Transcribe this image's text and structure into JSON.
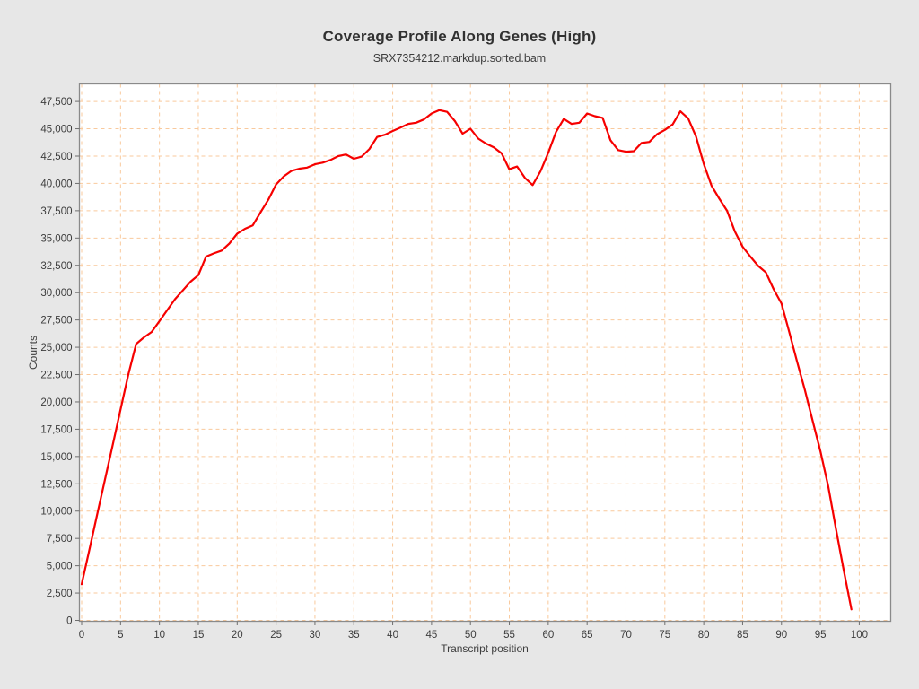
{
  "chart_data": {
    "type": "line",
    "title": "Coverage Profile Along Genes (High)",
    "subtitle": "SRX7354212.markdup.sorted.bam",
    "xlabel": "Transcript position",
    "ylabel": "Counts",
    "legend": "none",
    "grid": true,
    "grid_style": "dashed",
    "xlim": [
      -0.29,
      104.05
    ],
    "ylim": [
      -82,
      49110
    ],
    "x_ticks": [
      0,
      5,
      10,
      15,
      20,
      25,
      30,
      35,
      40,
      45,
      50,
      55,
      60,
      65,
      70,
      75,
      80,
      85,
      90,
      95,
      100
    ],
    "x_tick_labels": [
      "0",
      "5",
      "10",
      "15",
      "20",
      "25",
      "30",
      "35",
      "40",
      "45",
      "50",
      "55",
      "60",
      "65",
      "70",
      "75",
      "80",
      "85",
      "90",
      "95",
      "100"
    ],
    "y_ticks": [
      0,
      2500,
      5000,
      7500,
      10000,
      12500,
      15000,
      17500,
      20000,
      22500,
      25000,
      27500,
      30000,
      32500,
      35000,
      37500,
      40000,
      42500,
      45000,
      47500
    ],
    "y_tick_labels": [
      "0",
      "2,500",
      "5,000",
      "7,500",
      "10,000",
      "12,500",
      "15,000",
      "17,500",
      "20,000",
      "22,500",
      "25,000",
      "27,500",
      "30,000",
      "32,500",
      "35,000",
      "37,500",
      "40,000",
      "42,500",
      "45,000",
      "47,500"
    ],
    "colors": {
      "line": "#f60000",
      "grid": "#f9c99c",
      "plot_bg": "#ffffff",
      "page_bg": "#e7e7e7",
      "axis": "#8a8a8a",
      "tick": "#6e6e6e",
      "text": "#3d3d3d",
      "title": "#313131",
      "subtitle": "#3d3d3d"
    },
    "x": [
      0,
      1,
      2,
      3,
      4,
      5,
      6,
      7,
      8,
      9,
      10,
      11,
      12,
      13,
      14,
      15,
      16,
      17,
      18,
      19,
      20,
      21,
      22,
      23,
      24,
      25,
      26,
      27,
      28,
      29,
      30,
      31,
      32,
      33,
      34,
      35,
      36,
      37,
      38,
      39,
      40,
      41,
      42,
      43,
      44,
      45,
      46,
      47,
      48,
      49,
      50,
      51,
      52,
      53,
      54,
      55,
      56,
      57,
      58,
      59,
      60,
      61,
      62,
      63,
      64,
      65,
      66,
      67,
      68,
      69,
      70,
      71,
      72,
      73,
      74,
      75,
      76,
      77,
      78,
      79,
      80,
      81,
      82,
      83,
      84,
      85,
      86,
      87,
      88,
      89,
      90,
      91,
      92,
      93,
      94,
      95,
      96,
      97,
      98,
      99
    ],
    "values": [
      3300,
      6500,
      9700,
      12900,
      16100,
      19300,
      22500,
      25300,
      25900,
      26400,
      27400,
      28400,
      29400,
      30200,
      31000,
      31600,
      33300,
      33600,
      33850,
      34500,
      35400,
      35850,
      36150,
      37350,
      38500,
      39900,
      40650,
      41150,
      41350,
      41450,
      41750,
      41900,
      42150,
      42500,
      42650,
      42250,
      42450,
      43150,
      44250,
      44450,
      44800,
      45100,
      45450,
      45550,
      45850,
      46400,
      46700,
      46550,
      45700,
      44550,
      45000,
      44100,
      43650,
      43300,
      42750,
      41300,
      41550,
      40500,
      39850,
      41100,
      42800,
      44700,
      45900,
      45450,
      45550,
      46400,
      46150,
      46000,
      43950,
      43050,
      42900,
      42950,
      43700,
      43800,
      44500,
      44900,
      45400,
      46600,
      45950,
      44300,
      41800,
      39800,
      38600,
      37500,
      35600,
      34200,
      33300,
      32450,
      31850,
      30300,
      29000,
      26400,
      23700,
      21100,
      18300,
      15500,
      12300,
      8400,
      4600,
      1000
    ]
  }
}
